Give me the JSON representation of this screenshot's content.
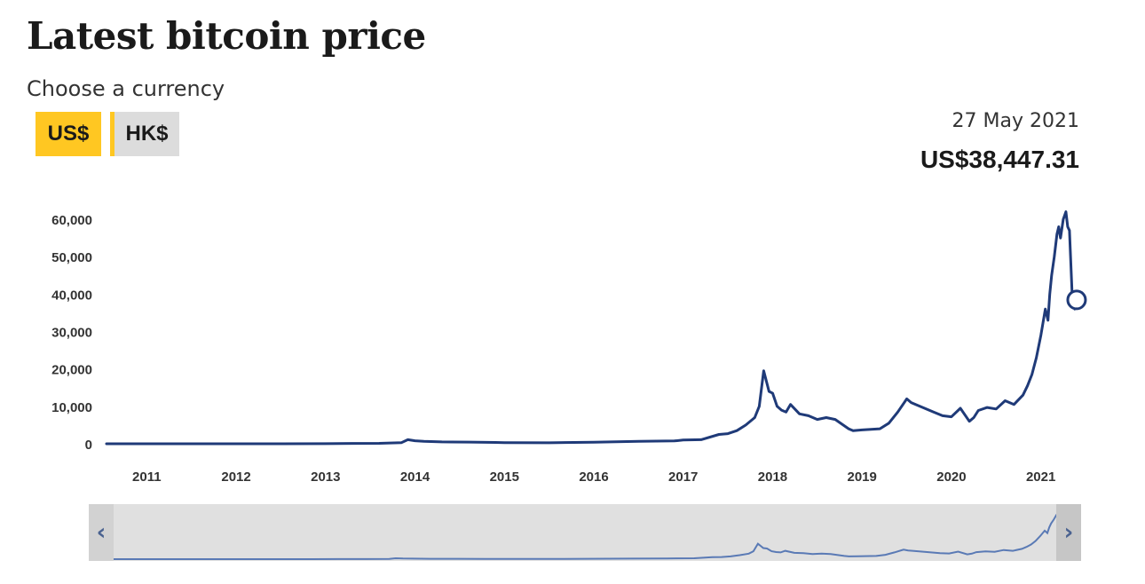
{
  "header": {
    "title": "Latest bitcoin price",
    "subtitle": "Choose a currency"
  },
  "currency_toggle": {
    "options": [
      {
        "label": "US$",
        "active": true
      },
      {
        "label": "HK$",
        "active": false
      }
    ]
  },
  "tooltip": {
    "date": "27 May 2021",
    "price": "US$38,447.31"
  },
  "navigator": {
    "left_arrow_icon": "chevron-left-icon",
    "right_arrow_icon": "chevron-right-icon"
  },
  "colors": {
    "line": "#1f3a78",
    "accent": "#ffc722",
    "inactive_button": "#dcdcdc",
    "navigator_line": "#5a7ab5"
  },
  "chart_data": {
    "type": "line",
    "title": "",
    "xlabel": "",
    "ylabel": "",
    "ylim": [
      0,
      65000
    ],
    "xlim": [
      2010.55,
      2021.45
    ],
    "yticks": [
      0,
      10000,
      20000,
      30000,
      40000,
      50000,
      60000
    ],
    "ytick_labels": [
      "0",
      "10,000",
      "20,000",
      "30,000",
      "40,000",
      "50,000",
      "60,000"
    ],
    "xticks": [
      2011,
      2012,
      2013,
      2014,
      2015,
      2016,
      2017,
      2018,
      2019,
      2020,
      2021
    ],
    "xtick_labels": [
      "2011",
      "2012",
      "2013",
      "2014",
      "2015",
      "2016",
      "2017",
      "2018",
      "2019",
      "2020",
      "2021"
    ],
    "grid": false,
    "legend": "none",
    "series": [
      {
        "x": [
          2010.55,
          2011.0,
          2011.5,
          2012.0,
          2012.5,
          2013.0,
          2013.3,
          2013.6,
          2013.85,
          2013.92,
          2014.0,
          2014.1,
          2014.3,
          2014.6,
          2014.9,
          2015.0,
          2015.5,
          2016.0,
          2016.5,
          2016.9,
          2017.0,
          2017.2,
          2017.4,
          2017.5,
          2017.6,
          2017.7,
          2017.8,
          2017.85,
          2017.9,
          2017.96,
          2018.0,
          2018.05,
          2018.1,
          2018.15,
          2018.2,
          2018.3,
          2018.4,
          2018.5,
          2018.6,
          2018.7,
          2018.85,
          2018.9,
          2019.0,
          2019.2,
          2019.3,
          2019.4,
          2019.5,
          2019.55,
          2019.6,
          2019.7,
          2019.8,
          2019.9,
          2020.0,
          2020.1,
          2020.2,
          2020.25,
          2020.3,
          2020.4,
          2020.5,
          2020.6,
          2020.7,
          2020.8,
          2020.85,
          2020.9,
          2020.95,
          2021.0,
          2021.05,
          2021.08,
          2021.1,
          2021.12,
          2021.15,
          2021.18,
          2021.2,
          2021.22,
          2021.25,
          2021.28,
          2021.3,
          2021.32,
          2021.35,
          2021.38,
          2021.4
        ],
        "y": [
          0,
          1,
          5,
          6,
          8,
          13,
          100,
          120,
          300,
          1100,
          800,
          650,
          500,
          450,
          350,
          300,
          250,
          430,
          650,
          750,
          1000,
          1100,
          2500,
          2700,
          3500,
          5000,
          7000,
          10000,
          19500,
          14000,
          13500,
          10000,
          9000,
          8500,
          10500,
          8000,
          7500,
          6500,
          7000,
          6500,
          4000,
          3500,
          3700,
          4000,
          5500,
          8500,
          12000,
          11000,
          10500,
          9500,
          8500,
          7500,
          7200,
          9500,
          6000,
          7000,
          8900,
          9700,
          9300,
          11500,
          10500,
          13000,
          15500,
          18500,
          23000,
          29000,
          36000,
          33000,
          40000,
          45000,
          50000,
          56000,
          58000,
          55000,
          60000,
          62000,
          58000,
          57000,
          40000,
          36000,
          38447
        ]
      }
    ],
    "marker": {
      "x": 2021.4,
      "y": 38447.31
    }
  }
}
